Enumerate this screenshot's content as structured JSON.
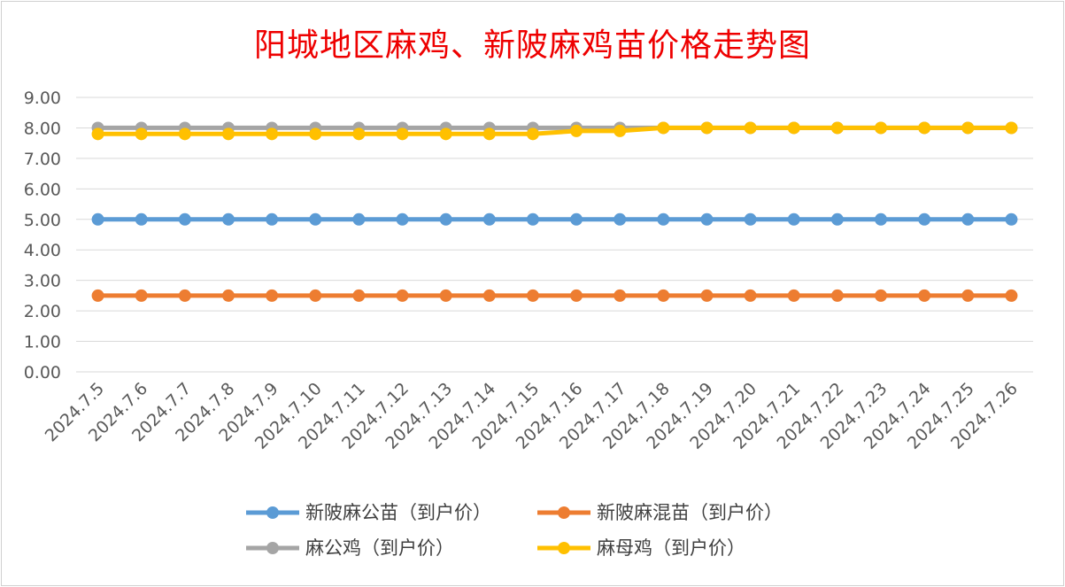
{
  "chart_data": {
    "type": "line",
    "title": "阳城地区麻鸡、新陂麻鸡苗价格走势图",
    "xlabel": "",
    "ylabel": "",
    "ylim": [
      0,
      9
    ],
    "yticks": [
      "0.00",
      "1.00",
      "2.00",
      "3.00",
      "4.00",
      "5.00",
      "6.00",
      "7.00",
      "8.00",
      "9.00"
    ],
    "grid": true,
    "legend_position": "bottom",
    "categories": [
      "2024.7.5",
      "2024.7.6",
      "2024.7.7",
      "2024.7.8",
      "2024.7.9",
      "2024.7.10",
      "2024.7.11",
      "2024.7.12",
      "2024.7.13",
      "2024.7.14",
      "2024.7.15",
      "2024.7.16",
      "2024.7.17",
      "2024.7.18",
      "2024.7.19",
      "2024.7.20",
      "2024.7.21",
      "2024.7.22",
      "2024.7.23",
      "2024.7.24",
      "2024.7.25",
      "2024.7.26"
    ],
    "series": [
      {
        "name": "新陂麻公苗（到户价）",
        "color": "#5b9bd5",
        "values": [
          5,
          5,
          5,
          5,
          5,
          5,
          5,
          5,
          5,
          5,
          5,
          5,
          5,
          5,
          5,
          5,
          5,
          5,
          5,
          5,
          5,
          5
        ]
      },
      {
        "name": "新陂麻混苗（到户价）",
        "color": "#ed7d31",
        "values": [
          2.5,
          2.5,
          2.5,
          2.5,
          2.5,
          2.5,
          2.5,
          2.5,
          2.5,
          2.5,
          2.5,
          2.5,
          2.5,
          2.5,
          2.5,
          2.5,
          2.5,
          2.5,
          2.5,
          2.5,
          2.5,
          2.5
        ]
      },
      {
        "name": "麻公鸡（到户价）",
        "color": "#a5a5a5",
        "values": [
          8,
          8,
          8,
          8,
          8,
          8,
          8,
          8,
          8,
          8,
          8,
          8,
          8,
          8,
          8,
          8,
          8,
          8,
          8,
          8,
          8,
          8
        ]
      },
      {
        "name": "麻母鸡（到户价）",
        "color": "#ffc000",
        "values": [
          7.8,
          7.8,
          7.8,
          7.8,
          7.8,
          7.8,
          7.8,
          7.8,
          7.8,
          7.8,
          7.8,
          7.9,
          7.9,
          8,
          8,
          8,
          8,
          8,
          8,
          8,
          8,
          8
        ]
      }
    ]
  }
}
